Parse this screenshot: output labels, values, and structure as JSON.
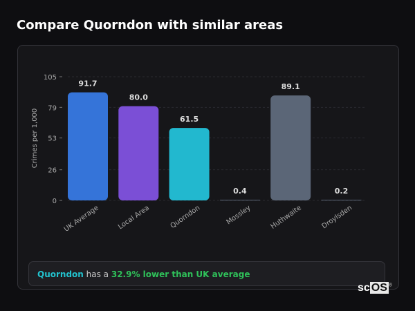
{
  "title": "Compare Quorndon with similar areas",
  "chart_data": {
    "type": "bar",
    "ylabel": "Crimes per 1,000",
    "xlabel": "",
    "ylim": [
      0,
      105
    ],
    "yticks": [
      0,
      26,
      53,
      79,
      105
    ],
    "grid": true,
    "categories": [
      "UK Average",
      "Local Area",
      "Quorndon",
      "Mossley",
      "Huthwaite",
      "Droylsden"
    ],
    "values": [
      91.7,
      80.0,
      61.5,
      0.4,
      89.1,
      0.2
    ],
    "labels": [
      "91.7",
      "80.0",
      "61.5",
      "0.4",
      "89.1",
      "0.2"
    ],
    "colors": [
      "#3574d9",
      "#7b4fd6",
      "#22b8cf",
      "#5b6677",
      "#5b6677",
      "#5b6677"
    ]
  },
  "summary": {
    "name": "Quorndon",
    "middle": " has a ",
    "highlight": "32.9% lower than UK average"
  },
  "logo": {
    "text_a": "sc",
    "text_b": "OS",
    "mark": "®"
  }
}
